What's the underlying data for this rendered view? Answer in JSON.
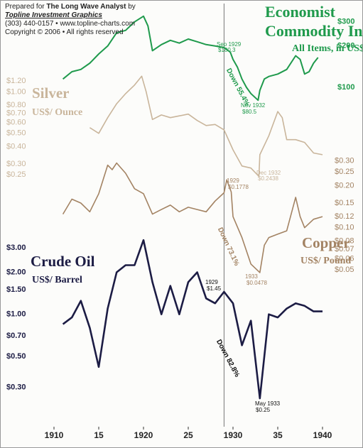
{
  "header": {
    "prepared": "Prepared for",
    "publication": "The Long Wave Analyst",
    "by": "by",
    "company": "Topline Investment Graphics",
    "contact": "(303) 440-0157 • www.topline-charts.com",
    "copyright": "Copyright © 2006 • All rights reserved"
  },
  "reference_x": 1929,
  "chart_data": [
    {
      "type": "line",
      "title_lines": [
        "Economist",
        "Commodity Index"
      ],
      "subtitle": "All Items, in US$",
      "color": "#1f9a4c",
      "x": [
        1911,
        1912,
        1913,
        1914,
        1915,
        1916,
        1917,
        1918,
        1919,
        1920,
        1920.5,
        1921,
        1922,
        1923,
        1924,
        1925,
        1926,
        1927,
        1928,
        1929,
        1929.7,
        1930,
        1930.5,
        1931,
        1931.5,
        1932,
        1932.8,
        1933,
        1933.5,
        1934,
        1935,
        1936,
        1937,
        1937.5,
        1938,
        1938.5,
        1939,
        1939.5
      ],
      "values": [
        115,
        130,
        135,
        150,
        175,
        200,
        250,
        260,
        300,
        330,
        280,
        185,
        205,
        220,
        210,
        225,
        215,
        205,
        200,
        195,
        180.3,
        160,
        140,
        115,
        100,
        90,
        80.5,
        95,
        115,
        120,
        125,
        135,
        170,
        160,
        125,
        130,
        150,
        165
      ],
      "xlim": [
        1910,
        1940
      ],
      "ylim": [
        76,
        380
      ],
      "log_scale": true,
      "y_axis_side": "right",
      "yticks": [
        {
          "value": 300,
          "label": "$300"
        },
        {
          "value": 200,
          "label": "$200"
        },
        {
          "value": 100,
          "label": "$100"
        }
      ],
      "annotations": [
        "Sep 1929",
        "$180.3",
        "Down 55.4%",
        "Nov 1932",
        "$80.5"
      ]
    },
    {
      "type": "line",
      "title_lines": [
        "Silver"
      ],
      "subtitle": "US$/ Ounce",
      "color": "#c9b59b",
      "x": [
        1914,
        1915,
        1916,
        1917,
        1918,
        1919,
        1919.8,
        1920.3,
        1921,
        1922,
        1923,
        1924,
        1925,
        1926,
        1927,
        1928,
        1929,
        1930,
        1931,
        1932,
        1932.9,
        1933,
        1934,
        1935,
        1935.5,
        1936,
        1937,
        1938,
        1939,
        1940
      ],
      "values": [
        0.55,
        0.5,
        0.65,
        0.82,
        0.97,
        1.12,
        1.3,
        1.0,
        0.63,
        0.68,
        0.65,
        0.67,
        0.69,
        0.62,
        0.57,
        0.58,
        0.53,
        0.38,
        0.29,
        0.28,
        0.2438,
        0.35,
        0.48,
        0.72,
        0.65,
        0.45,
        0.45,
        0.43,
        0.36,
        0.35
      ],
      "xlim": [
        1910,
        1940
      ],
      "ylim": [
        0.21,
        1.4
      ],
      "log_scale": true,
      "y_axis_side": "left",
      "yticks": [
        {
          "value": 1.2,
          "label": "$1.20"
        },
        {
          "value": 1,
          "label": "$1.00"
        },
        {
          "value": 0.8,
          "label": "$0.80"
        },
        {
          "value": 0.7,
          "label": "$0.70"
        },
        {
          "value": 0.6,
          "label": "$0.60"
        },
        {
          "value": 0.5,
          "label": "$0.50"
        },
        {
          "value": 0.4,
          "label": "$0.40"
        },
        {
          "value": 0.3,
          "label": "$0.30"
        },
        {
          "value": 0.25,
          "label": "$0.25"
        }
      ],
      "annotations": [
        "Dec 1932",
        "$0.2438"
      ]
    },
    {
      "type": "line",
      "title_lines": [
        "Copper"
      ],
      "subtitle": "US$/ Pound",
      "color": "#a38363",
      "x": [
        1911,
        1912,
        1913,
        1914,
        1915,
        1916,
        1916.5,
        1917,
        1918,
        1919,
        1920,
        1921,
        1922,
        1923,
        1924,
        1925,
        1926,
        1927,
        1928,
        1929,
        1929.3,
        1929.8,
        1930,
        1931,
        1932,
        1933,
        1933.5,
        1934,
        1935,
        1936,
        1937,
        1937.5,
        1938,
        1939,
        1940
      ],
      "values": [
        0.125,
        0.16,
        0.15,
        0.13,
        0.175,
        0.28,
        0.26,
        0.29,
        0.245,
        0.19,
        0.175,
        0.125,
        0.135,
        0.145,
        0.13,
        0.14,
        0.135,
        0.13,
        0.155,
        0.1778,
        0.22,
        0.18,
        0.12,
        0.085,
        0.055,
        0.0478,
        0.075,
        0.085,
        0.09,
        0.095,
        0.165,
        0.12,
        0.1,
        0.115,
        0.12
      ],
      "xlim": [
        1910,
        1940
      ],
      "ylim": [
        0.044,
        0.34
      ],
      "log_scale": true,
      "y_axis_side": "right",
      "yticks": [
        {
          "value": 0.3,
          "label": "$0.30"
        },
        {
          "value": 0.25,
          "label": "$0.25"
        },
        {
          "value": 0.2,
          "label": "$0.20"
        },
        {
          "value": 0.15,
          "label": "$0.15"
        },
        {
          "value": 0.12,
          "label": "$0.12"
        },
        {
          "value": 0.1,
          "label": "$0.10"
        },
        {
          "value": 0.08,
          "label": "$0.08"
        },
        {
          "value": 0.07,
          "label": "$0.07"
        },
        {
          "value": 0.06,
          "label": "$0.06"
        },
        {
          "value": 0.05,
          "label": "$0.05"
        }
      ],
      "annotations": [
        "1929",
        "$0.1778",
        "Down 73.1%",
        "1933",
        "$0.0478"
      ]
    },
    {
      "type": "line",
      "title_lines": [
        "Crude Oil"
      ],
      "subtitle": "US$/ Barrel",
      "color": "#1c1c44",
      "x": [
        1911,
        1912,
        1913,
        1914,
        1915,
        1916,
        1917,
        1918,
        1919,
        1920,
        1921,
        1922,
        1923,
        1924,
        1925,
        1926,
        1927,
        1928,
        1929,
        1930,
        1931,
        1932,
        1933,
        1934,
        1935,
        1936,
        1937,
        1938,
        1939,
        1940
      ],
      "values": [
        0.85,
        0.95,
        1.25,
        0.8,
        0.42,
        1.1,
        2.0,
        2.25,
        2.25,
        3.4,
        1.7,
        1.0,
        1.6,
        1.0,
        1.7,
        2.0,
        1.3,
        1.2,
        1.45,
        1.2,
        0.6,
        0.9,
        0.25,
        1.0,
        0.95,
        1.1,
        1.2,
        1.15,
        1.05,
        1.05
      ],
      "xlim": [
        1910,
        1940
      ],
      "ylim": [
        0.21,
        3.7
      ],
      "log_scale": true,
      "y_axis_side": "left",
      "yticks": [
        {
          "value": 3,
          "label": "$3.00"
        },
        {
          "value": 2,
          "label": "$2.00"
        },
        {
          "value": 1.5,
          "label": "$1.50"
        },
        {
          "value": 1,
          "label": "$1.00"
        },
        {
          "value": 0.7,
          "label": "$0.70"
        },
        {
          "value": 0.5,
          "label": "$0.50"
        },
        {
          "value": 0.3,
          "label": "$0.30"
        }
      ],
      "xticks": [
        1910,
        {
          "value": 1915,
          "label": "15"
        },
        1920,
        {
          "value": 1925,
          "label": "25"
        },
        1930,
        {
          "value": 1935,
          "label": "35"
        },
        1940
      ],
      "annotations": [
        "1929",
        "$1.45",
        "Down 82.8%",
        "May 1933",
        "$0.25"
      ]
    }
  ]
}
